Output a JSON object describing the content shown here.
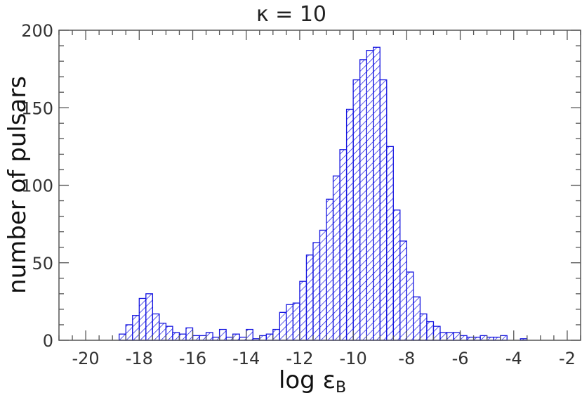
{
  "chart_data": {
    "type": "bar",
    "title": "κ = 10",
    "xlabel": "log ε",
    "xlabel_sub": "B",
    "ylabel": "number of pulsars",
    "xlim": [
      -21,
      -1.5
    ],
    "ylim": [
      0,
      200
    ],
    "xticks": [
      -20,
      -18,
      -16,
      -14,
      -12,
      -10,
      -8,
      -6,
      -4,
      -2
    ],
    "yticks": [
      0,
      50,
      100,
      150,
      200
    ],
    "grid": false,
    "bin_width": 0.25,
    "bar_color": "#1414e0",
    "bar_fill": "diagonal-hatch",
    "x": [
      -18.75,
      -18.5,
      -18.25,
      -18.0,
      -17.75,
      -17.5,
      -17.25,
      -17.0,
      -16.75,
      -16.5,
      -16.25,
      -16.0,
      -15.75,
      -15.5,
      -15.25,
      -15.0,
      -14.75,
      -14.5,
      -14.25,
      -14.0,
      -13.75,
      -13.5,
      -13.25,
      -13.0,
      -12.75,
      -12.5,
      -12.25,
      -12.0,
      -11.75,
      -11.5,
      -11.25,
      -11.0,
      -10.75,
      -10.5,
      -10.25,
      -10.0,
      -9.75,
      -9.5,
      -9.25,
      -9.0,
      -8.75,
      -8.5,
      -8.25,
      -8.0,
      -7.75,
      -7.5,
      -7.25,
      -7.0,
      -6.75,
      -6.5,
      -6.25,
      -6.0,
      -5.75,
      -5.5,
      -5.25,
      -5.0,
      -4.75,
      -4.5,
      -3.75
    ],
    "values": [
      4,
      10,
      16,
      27,
      30,
      17,
      11,
      9,
      5,
      4,
      8,
      3,
      3,
      5,
      2,
      7,
      2,
      4,
      2,
      7,
      1,
      3,
      4,
      7,
      18,
      23,
      24,
      38,
      55,
      63,
      71,
      91,
      106,
      123,
      149,
      168,
      181,
      187,
      189,
      168,
      125,
      84,
      64,
      44,
      28,
      17,
      12,
      9,
      5,
      5,
      5,
      3,
      2,
      2,
      3,
      2,
      2,
      3,
      1
    ]
  }
}
